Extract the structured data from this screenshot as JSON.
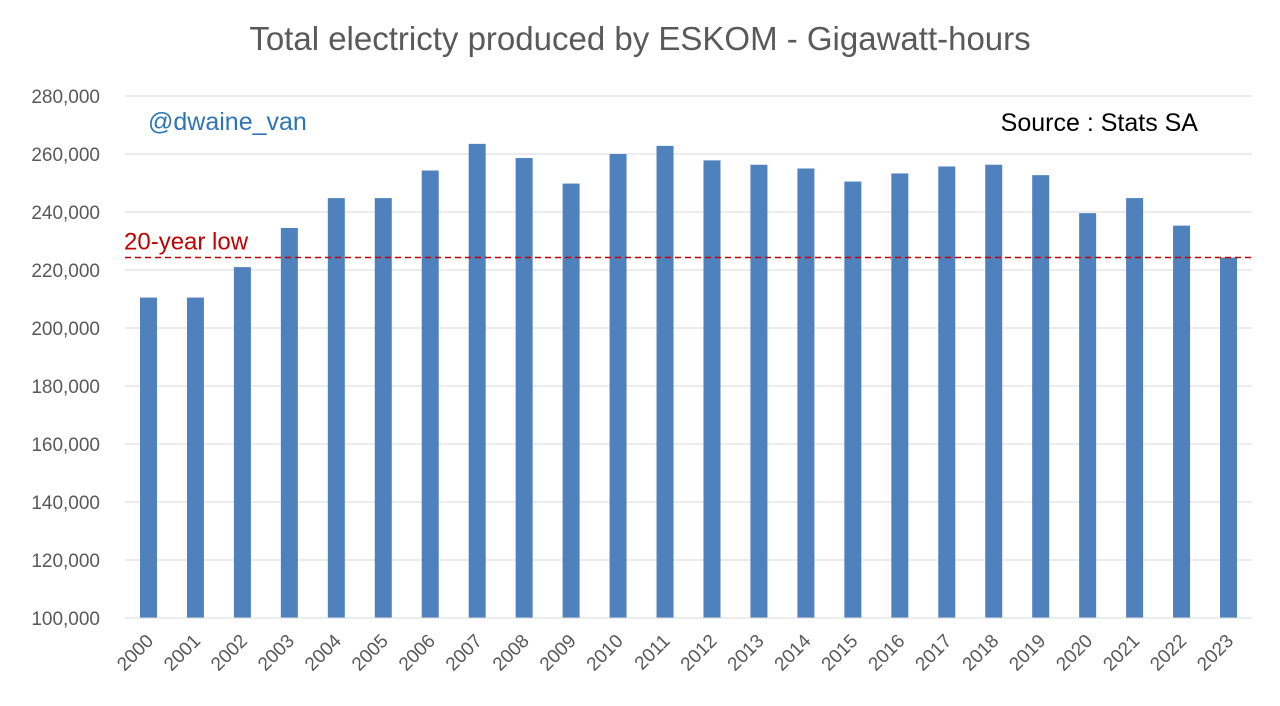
{
  "chart_data": {
    "type": "bar",
    "title": "Total electricty produced by ESKOM - Gigawatt-hours",
    "xlabel": "",
    "ylabel": "",
    "ylim": [
      100000,
      280000
    ],
    "ytick_labels": [
      "100,000",
      "120,000",
      "140,000",
      "160,000",
      "180,000",
      "200,000",
      "220,000",
      "240,000",
      "260,000",
      "280,000"
    ],
    "categories": [
      "2000",
      "2001",
      "2002",
      "2003",
      "2004",
      "2005",
      "2006",
      "2007",
      "2008",
      "2009",
      "2010",
      "2011",
      "2012",
      "2013",
      "2014",
      "2015",
      "2016",
      "2017",
      "2018",
      "2019",
      "2020",
      "2021",
      "2022",
      "2023"
    ],
    "values": [
      210500,
      210500,
      221000,
      234500,
      244800,
      244800,
      254300,
      263500,
      258600,
      249800,
      260000,
      262800,
      257800,
      256300,
      255000,
      250500,
      253300,
      255700,
      256300,
      252700,
      239600,
      244800,
      235300,
      224300
    ],
    "grid": true,
    "legend": "none",
    "bar_color": "#4f81bd",
    "annotations": {
      "handle": "@dwaine_van",
      "handle_color": "#2e75b6",
      "source": "Source : Stats SA",
      "reference_line": {
        "label": "20-year low",
        "value": 224300,
        "color": "#c00000"
      }
    }
  }
}
